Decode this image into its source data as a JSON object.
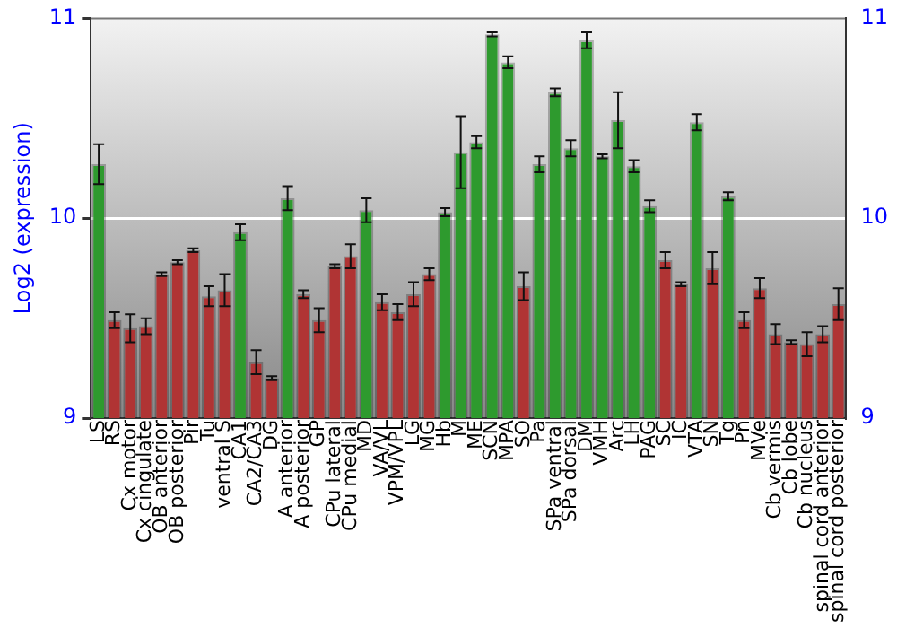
{
  "chart_data": {
    "type": "bar",
    "ylabel": "Log2 (expression)",
    "categories": [
      "LS",
      "RS",
      "Cx motor",
      "Cx cingulate",
      "OB anterior",
      "OB posterior",
      "Pir",
      "Tu",
      "ventral S",
      "CA1",
      "CA2/CA3",
      "DG",
      "A anterior",
      "A posterior",
      "GP",
      "CPu lateral",
      "CPu medial",
      "MD",
      "VA/VL",
      "VPM/VPL",
      "LG",
      "MG",
      "Hb",
      "M",
      "ME",
      "SCN",
      "MPA",
      "SO",
      "Pa",
      "SPa ventral",
      "SPa dorsal",
      "DM",
      "VMH",
      "Arc",
      "LH",
      "PAG",
      "SC",
      "IC",
      "VTA",
      "SN",
      "Tg",
      "Pn",
      "MVe",
      "Cb vermis",
      "Cb lobe",
      "Cb nucleus",
      "spinal cord anterior",
      "spinal cord posterior"
    ],
    "values": [
      10.27,
      9.49,
      9.45,
      9.46,
      9.72,
      9.78,
      9.84,
      9.61,
      9.64,
      9.93,
      9.28,
      9.2,
      10.1,
      9.62,
      9.49,
      9.76,
      9.81,
      10.04,
      9.58,
      9.53,
      9.62,
      9.72,
      10.03,
      10.33,
      10.38,
      10.92,
      10.78,
      9.66,
      10.27,
      10.63,
      10.35,
      10.89,
      10.31,
      10.49,
      10.26,
      10.06,
      9.79,
      9.67,
      10.48,
      9.75,
      10.11,
      9.49,
      9.65,
      9.42,
      9.38,
      9.37,
      9.42,
      9.57
    ],
    "errors": [
      0.1,
      0.04,
      0.07,
      0.04,
      0.01,
      0.01,
      0.01,
      0.05,
      0.08,
      0.04,
      0.06,
      0.01,
      0.06,
      0.02,
      0.06,
      0.01,
      0.06,
      0.06,
      0.04,
      0.04,
      0.06,
      0.03,
      0.02,
      0.18,
      0.03,
      0.01,
      0.03,
      0.07,
      0.04,
      0.02,
      0.04,
      0.04,
      0.01,
      0.14,
      0.03,
      0.03,
      0.04,
      0.01,
      0.04,
      0.08,
      0.02,
      0.04,
      0.05,
      0.05,
      0.01,
      0.06,
      0.04,
      0.08
    ],
    "colors": [
      "#2e9a2e",
      "#b03434",
      "#b03434",
      "#b03434",
      "#b03434",
      "#b03434",
      "#b03434",
      "#b03434",
      "#b03434",
      "#2e9a2e",
      "#b03434",
      "#b03434",
      "#2e9a2e",
      "#b03434",
      "#b03434",
      "#b03434",
      "#b03434",
      "#2e9a2e",
      "#b03434",
      "#b03434",
      "#b03434",
      "#b03434",
      "#2e9a2e",
      "#2e9a2e",
      "#2e9a2e",
      "#2e9a2e",
      "#2e9a2e",
      "#b03434",
      "#2e9a2e",
      "#2e9a2e",
      "#2e9a2e",
      "#2e9a2e",
      "#2e9a2e",
      "#2e9a2e",
      "#2e9a2e",
      "#2e9a2e",
      "#b03434",
      "#b03434",
      "#2e9a2e",
      "#b03434",
      "#2e9a2e",
      "#b03434",
      "#b03434",
      "#b03434",
      "#b03434",
      "#b03434",
      "#b03434",
      "#b03434"
    ],
    "ylim": [
      9,
      11
    ],
    "yticks": [
      9,
      10,
      11
    ],
    "y2lim": [
      9,
      11
    ],
    "y2ticks": [
      9,
      10,
      11
    ],
    "grid": "y",
    "legend": false
  }
}
